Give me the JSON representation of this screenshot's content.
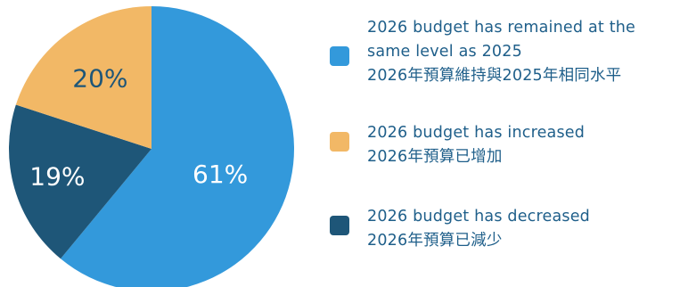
{
  "colors": {
    "blue": "#3399db",
    "yellow": "#f2b866",
    "navy": "#1e5678",
    "legend_text": "#1f5f8a",
    "label_light": "#ffffff",
    "label_dark": "#1e5678"
  },
  "chart_data": {
    "type": "pie",
    "slices": [
      {
        "name": "2026 budget has remained at the same level as 2025 2026年預算維持與2025年相同水平",
        "value": 61,
        "label": "61%",
        "color": "#3399db"
      },
      {
        "name": "2026 budget has decreased 2026年預算已減少",
        "value": 19,
        "label": "19%",
        "color": "#1e5678"
      },
      {
        "name": "2026 budget has increased 2026年預算已增加",
        "value": 20,
        "label": "20%",
        "color": "#f2b866"
      }
    ],
    "legend_position": "right",
    "legend": [
      {
        "lines": [
          "2026 budget has remained at the",
          "same level as 2025",
          "2026年預算維持與2025年相同水平"
        ],
        "color": "#3399db"
      },
      {
        "lines": [
          "2026 budget has increased",
          "2026年預算已增加"
        ],
        "color": "#f2b866"
      },
      {
        "lines": [
          "2026 budget has decreased",
          "2026年預算已減少"
        ],
        "color": "#1e5678"
      }
    ]
  }
}
